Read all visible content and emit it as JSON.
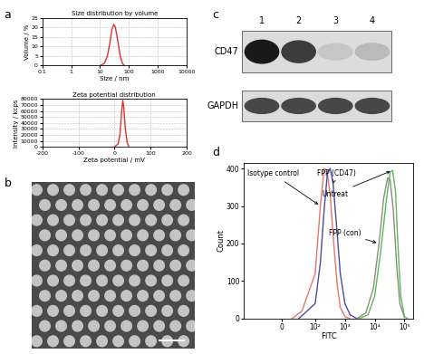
{
  "chart_data": [
    {
      "type": "line",
      "title": "Size distribution by volume",
      "x_label": "Size / nm",
      "y_label": "Volume / %",
      "log": "x",
      "grid": true,
      "xlim": [
        0.1,
        10000
      ],
      "xticks": [
        0.1,
        1,
        10,
        100,
        1000,
        10000
      ],
      "ylim": [
        0,
        25
      ],
      "yticks": [
        0,
        5,
        10,
        15,
        20,
        25
      ],
      "series": [
        {
          "color": "#e03030",
          "x": [
            10,
            14,
            18,
            22,
            26,
            30,
            34,
            40,
            50,
            60,
            70
          ],
          "values": [
            0,
            1,
            5,
            12,
            19,
            21.5,
            20,
            14,
            5,
            1,
            0
          ]
        }
      ]
    },
    {
      "type": "line",
      "title": "Zeta potential distribution",
      "x_label": "Zeta potential / mV",
      "y_label": "Intensity / kcps",
      "grid": true,
      "xlim": [
        -200,
        200
      ],
      "xticks": [
        -200,
        -100,
        0,
        100,
        200
      ],
      "ylim": [
        0,
        80000
      ],
      "yticks": [
        0,
        10000,
        20000,
        30000,
        40000,
        50000,
        60000,
        70000,
        80000
      ],
      "series": [
        {
          "color": "#e03030",
          "x": [
            0,
            10,
            15,
            20,
            23,
            26,
            30,
            35,
            40
          ],
          "values": [
            0,
            5000,
            20000,
            60000,
            78000,
            65000,
            30000,
            8000,
            0
          ]
        }
      ]
    },
    {
      "type": "line",
      "x_label": "FITC",
      "y_label": "Count",
      "log": "x",
      "xlim": [
        -150,
        200000
      ],
      "xticks": [
        0,
        {
          "value": 100,
          "label": "10²"
        },
        {
          "value": 1000,
          "label": "10³"
        },
        {
          "value": 10000,
          "label": "10⁴"
        },
        {
          "value": 100000,
          "label": "10⁵"
        }
      ],
      "ylim": [
        0,
        415
      ],
      "yticks": [
        0,
        100,
        200,
        300,
        400
      ],
      "series": [
        {
          "name": "Isotype control",
          "color": "#e8756a",
          "x": [
            30,
            60,
            100,
            150,
            200,
            250,
            320,
            420,
            550,
            700,
            1000,
            1500
          ],
          "values": [
            0,
            20,
            120,
            300,
            400,
            395,
            330,
            200,
            90,
            30,
            5,
            0
          ]
        },
        {
          "name": "FPP (CD47)",
          "color": "#4a4aa8",
          "x": [
            50,
            100,
            150,
            200,
            260,
            320,
            400,
            520,
            700,
            1000,
            1500,
            2500
          ],
          "values": [
            0,
            40,
            150,
            290,
            390,
            400,
            360,
            250,
            120,
            40,
            10,
            0
          ]
        },
        {
          "name": "Untreat",
          "color": "#5cb85c",
          "x": [
            3000,
            6000,
            10000,
            16000,
            25000,
            33000,
            40000,
            50000,
            60000,
            75000,
            100000,
            130000
          ],
          "values": [
            0,
            10,
            60,
            180,
            320,
            390,
            395,
            340,
            200,
            60,
            5,
            0
          ]
        },
        {
          "name": "FPP (con)",
          "color": "#8c8c7a",
          "x": [
            2500,
            5000,
            9000,
            14000,
            20000,
            27000,
            33000,
            42000,
            55000,
            70000,
            100000
          ],
          "values": [
            0,
            15,
            80,
            200,
            320,
            375,
            370,
            290,
            140,
            40,
            3
          ]
        }
      ]
    }
  ],
  "panel_labels": [
    "a",
    "b",
    "c",
    "d"
  ],
  "western_blot": {
    "lanes": [
      "1",
      "2",
      "3",
      "4"
    ],
    "rows": [
      {
        "label": "CD47",
        "intensity": [
          1.0,
          0.85,
          0.25,
          0.3
        ]
      },
      {
        "label": "GAPDH",
        "intensity": [
          0.8,
          0.8,
          0.8,
          0.8
        ]
      }
    ]
  }
}
